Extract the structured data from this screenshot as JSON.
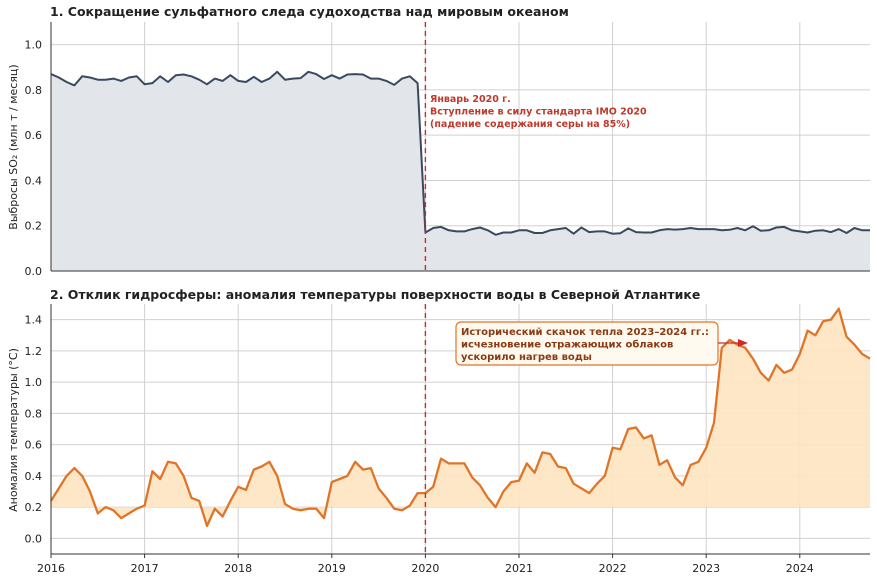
{
  "chart_data": [
    {
      "type": "area",
      "title": "1. Сокращение сульфатного следа судоходства над мировым океаном",
      "ylabel": "Выбросы SO₂ (млн т / месяц)",
      "xlabel": "",
      "xlim": [
        "2016-01",
        "2024-10"
      ],
      "ylim": [
        0,
        1.1
      ],
      "yticks": [
        "0.0",
        "0.2",
        "0.4",
        "0.6",
        "0.8",
        "1.0"
      ],
      "grid": true,
      "vline": "2020-01",
      "annotation": {
        "lines": [
          "Январь 2020 г.",
          "Вступление в силу стандарта IMO 2020",
          "(падение содержания серы на 85%)"
        ]
      },
      "series": [
        {
          "start": "2016-01",
          "values": [
            0.87,
            0.855,
            0.835,
            0.82,
            0.86,
            0.855,
            0.845,
            0.845,
            0.85,
            0.84,
            0.855,
            0.86,
            0.825,
            0.83,
            0.86,
            0.835,
            0.865,
            0.868,
            0.86,
            0.845,
            0.825,
            0.85,
            0.84,
            0.865,
            0.84,
            0.835,
            0.858,
            0.835,
            0.85,
            0.88,
            0.845,
            0.85,
            0.852,
            0.88,
            0.87,
            0.848,
            0.865,
            0.85,
            0.868,
            0.87,
            0.868,
            0.85,
            0.85,
            0.84,
            0.822,
            0.85,
            0.86,
            0.83,
            0.17,
            0.19,
            0.195,
            0.18,
            0.175,
            0.175,
            0.185,
            0.192,
            0.18,
            0.16,
            0.17,
            0.17,
            0.18,
            0.18,
            0.168,
            0.168,
            0.18,
            0.185,
            0.19,
            0.165,
            0.192,
            0.172,
            0.175,
            0.175,
            0.165,
            0.167,
            0.188,
            0.172,
            0.17,
            0.17,
            0.18,
            0.185,
            0.183,
            0.185,
            0.19,
            0.185,
            0.185,
            0.185,
            0.18,
            0.182,
            0.19,
            0.18,
            0.198,
            0.178,
            0.18,
            0.192,
            0.195,
            0.18,
            0.175,
            0.17,
            0.178,
            0.18,
            0.172,
            0.185,
            0.168,
            0.19,
            0.18,
            0.18
          ]
        }
      ]
    },
    {
      "type": "area",
      "title": "2. Отклик гидросферы: аномалия температуры поверхности воды в Северной Атлантике",
      "ylabel": "Аномалия температуры (°C)",
      "xlabel": "",
      "xlim": [
        "2016-01",
        "2024-10"
      ],
      "ylim": [
        -0.1,
        1.5
      ],
      "yticks": [
        "0.0",
        "0.2",
        "0.4",
        "0.6",
        "0.8",
        "1.0",
        "1.2",
        "1.4"
      ],
      "xticks": [
        "2016",
        "2017",
        "2018",
        "2019",
        "2020",
        "2021",
        "2022",
        "2023",
        "2024"
      ],
      "grid": true,
      "fill_base": 0.2,
      "vline": "2020-01",
      "annotation": {
        "lines": [
          "Исторический скачок тепла 2023–2024 гг.:",
          "исчезновение отражающих облаков",
          "ускорило нагрев воды"
        ],
        "arrow_to": "2023-04"
      },
      "series": [
        {
          "start": "2016-01",
          "values": [
            0.24,
            0.32,
            0.4,
            0.45,
            0.4,
            0.3,
            0.16,
            0.2,
            0.18,
            0.13,
            0.16,
            0.19,
            0.21,
            0.43,
            0.38,
            0.49,
            0.48,
            0.4,
            0.26,
            0.24,
            0.08,
            0.19,
            0.14,
            0.24,
            0.33,
            0.31,
            0.44,
            0.46,
            0.49,
            0.4,
            0.22,
            0.19,
            0.18,
            0.19,
            0.19,
            0.13,
            0.36,
            0.38,
            0.4,
            0.49,
            0.44,
            0.45,
            0.32,
            0.26,
            0.19,
            0.18,
            0.21,
            0.29,
            0.29,
            0.33,
            0.51,
            0.48,
            0.48,
            0.48,
            0.39,
            0.34,
            0.26,
            0.2,
            0.3,
            0.36,
            0.37,
            0.48,
            0.42,
            0.55,
            0.54,
            0.46,
            0.45,
            0.35,
            0.32,
            0.29,
            0.35,
            0.4,
            0.58,
            0.57,
            0.7,
            0.71,
            0.64,
            0.66,
            0.47,
            0.5,
            0.39,
            0.34,
            0.47,
            0.49,
            0.58,
            0.74,
            1.22,
            1.27,
            1.24,
            1.22,
            1.15,
            1.06,
            1.01,
            1.11,
            1.06,
            1.08,
            1.18,
            1.33,
            1.3,
            1.39,
            1.4,
            1.47,
            1.29,
            1.24,
            1.18,
            1.15
          ]
        }
      ]
    }
  ],
  "colors": {
    "panel1_line": "#3a4a5e",
    "panel1_fill": "#e2e5ea",
    "panel2_line": "#e0752a",
    "panel2_fill": "#fde4c0",
    "vline": "#cc2a2a",
    "annotation1": "#c0392b",
    "annotation2_text": "#8b3a12",
    "annotation2_border": "#e0752a",
    "annotation2_bg": "#fffaf0",
    "grid": "#d0d0d0"
  }
}
